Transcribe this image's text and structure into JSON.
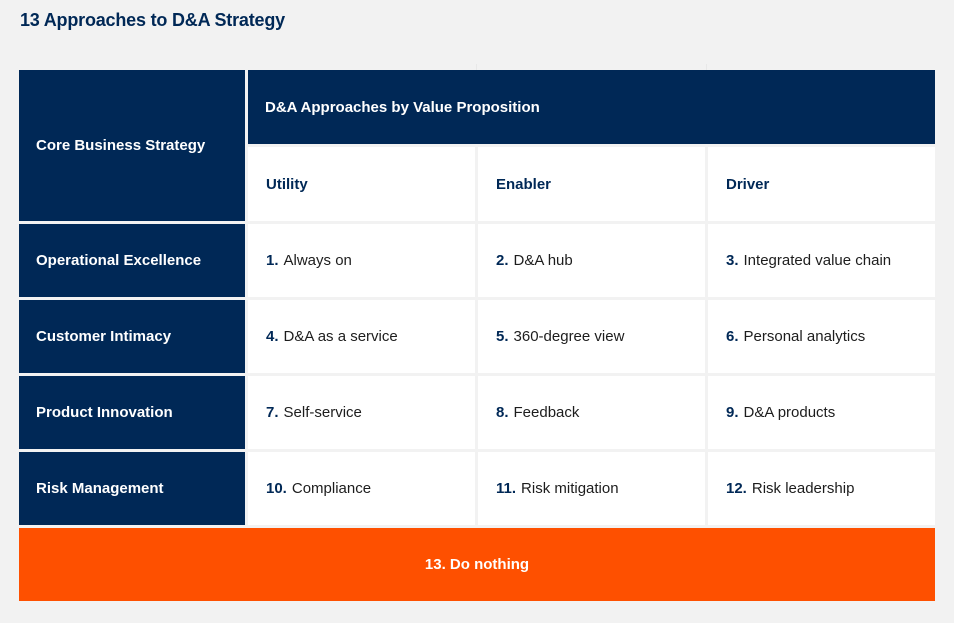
{
  "title": "13 Approaches to D&A Strategy",
  "table": {
    "corner_label": "Core Business Strategy",
    "group_header": "D&A Approaches by Value Proposition",
    "columns": [
      "Utility",
      "Enabler",
      "Driver"
    ],
    "rows": [
      {
        "label": "Operational Excellence",
        "cells": [
          {
            "num": "1.",
            "text": "Always on"
          },
          {
            "num": "2.",
            "text": "D&A hub"
          },
          {
            "num": "3.",
            "text": "Integrated value chain"
          }
        ]
      },
      {
        "label": "Customer Intimacy",
        "cells": [
          {
            "num": "4.",
            "text": "D&A as a service"
          },
          {
            "num": "5.",
            "text": "360-degree view"
          },
          {
            "num": "6.",
            "text": "Personal analytics"
          }
        ]
      },
      {
        "label": "Product Innovation",
        "cells": [
          {
            "num": "7.",
            "text": "Self-service"
          },
          {
            "num": "8.",
            "text": "Feedback"
          },
          {
            "num": "9.",
            "text": "D&A products"
          }
        ]
      },
      {
        "label": "Risk Management",
        "cells": [
          {
            "num": "10.",
            "text": "Compliance"
          },
          {
            "num": "11.",
            "text": "Risk mitigation"
          },
          {
            "num": "12.",
            "text": "Risk leadership"
          }
        ]
      }
    ],
    "footer": "13. Do nothing"
  },
  "colors": {
    "navy": "#002856",
    "orange": "#fe5000",
    "background": "#f2f2f2"
  }
}
